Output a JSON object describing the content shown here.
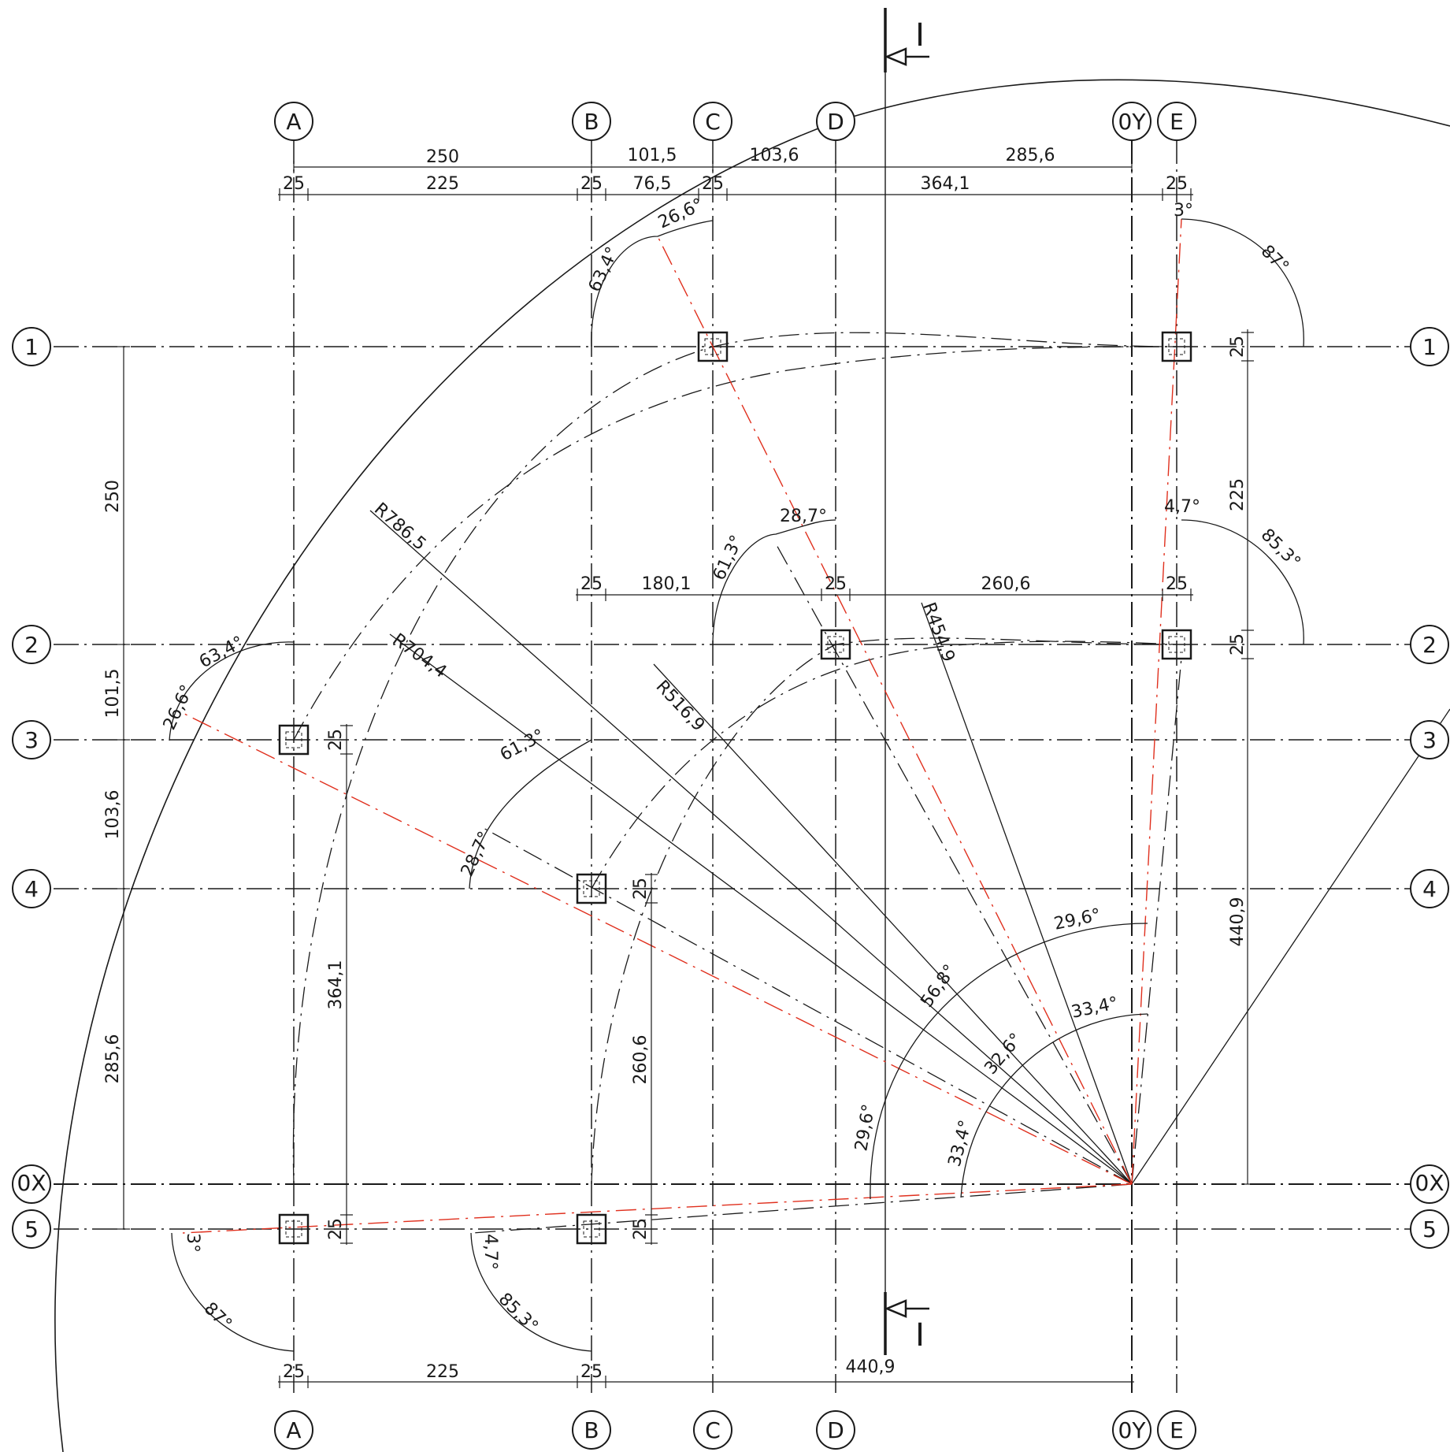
{
  "grid": {
    "columns_top": [
      "A",
      "B",
      "C",
      "D",
      "0Y",
      "E"
    ],
    "columns_bottom": [
      "A",
      "B",
      "C",
      "D",
      "0Y",
      "E"
    ],
    "rows_left": [
      "1",
      "2",
      "3",
      "4",
      "0X",
      "5"
    ],
    "rows_right": [
      "1",
      "2",
      "3",
      "4",
      "0X",
      "5"
    ]
  },
  "section_marker": {
    "label_top": "I",
    "label_bottom": "I"
  },
  "dimensions": {
    "top_row1": [
      "250",
      "101,5",
      "103,6",
      "285,6"
    ],
    "top_row2": [
      "25",
      "225",
      "25",
      "76,5",
      "25",
      "364,1",
      "25"
    ],
    "mid_horizontal": [
      "25",
      "180,1",
      "25",
      "260,6",
      "25"
    ],
    "bottom_row": [
      "25",
      "225",
      "25",
      "440,9"
    ],
    "left_vertical": [
      "250",
      "101,5",
      "103,6",
      "285,6"
    ],
    "right_vertical": [
      "25",
      "225",
      "25",
      "440,9"
    ],
    "col_a_vertical": [
      "25",
      "364,1",
      "25"
    ],
    "col_b_vertical": [
      "25",
      "260,6",
      "25"
    ]
  },
  "radii": [
    "R786,5",
    "R704,4",
    "R516,9",
    "R454,9"
  ],
  "angles": {
    "top_c": [
      "26,6°",
      "63,4°"
    ],
    "top_e": [
      "3°",
      "87°"
    ],
    "mid_d": [
      "28,7°",
      "61,3°"
    ],
    "mid_e": [
      "4,7°",
      "85,3°"
    ],
    "left_a": [
      "63,4°",
      "26,6°"
    ],
    "left_b": [
      "61,3°",
      "28,7°"
    ],
    "bottom_a": [
      "3°",
      "87°"
    ],
    "bottom_b": [
      "4,7°",
      "85,3°"
    ],
    "origin": [
      "29,6°",
      "56,8°",
      "33,4°",
      "32,6°",
      "29,6°",
      "33,4°"
    ]
  },
  "colors": {
    "line": "#1a1a1a",
    "red": "#e0301e"
  }
}
